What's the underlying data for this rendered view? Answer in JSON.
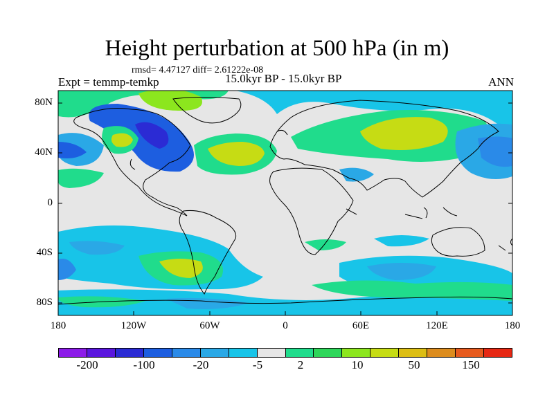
{
  "header": {
    "title": "Height perturbation at 500 hPa (in m)",
    "stats": "rmsd= 4.47127 diff= 2.61222e-08",
    "experiment": "Expt = temmp-temkp",
    "period": "15.0kyr BP - 15.0kyr BP",
    "season": "ANN"
  },
  "axes": {
    "lat_labels": [
      "80N",
      "40N",
      "0",
      "40S",
      "80S"
    ],
    "lon_labels": [
      "180",
      "120W",
      "60W",
      "0",
      "60E",
      "120E",
      "180"
    ]
  },
  "colorbar": {
    "colors": [
      "#8c1be8",
      "#5a16de",
      "#2b2bd4",
      "#1d5ee0",
      "#2a8ae8",
      "#2aa8e6",
      "#18c4e8",
      "#e6e6e6",
      "#20dc8c",
      "#2ed65a",
      "#8ce61e",
      "#c6dc14",
      "#dcbe14",
      "#dc8c1e",
      "#e65a1e",
      "#e62814"
    ],
    "labels": [
      "-200",
      "-100",
      "-20",
      "-5",
      "2",
      "10",
      "50",
      "150"
    ]
  },
  "map_colors": {
    "ocean_background": "#e6e6e6",
    "coastline": "#000000"
  }
}
